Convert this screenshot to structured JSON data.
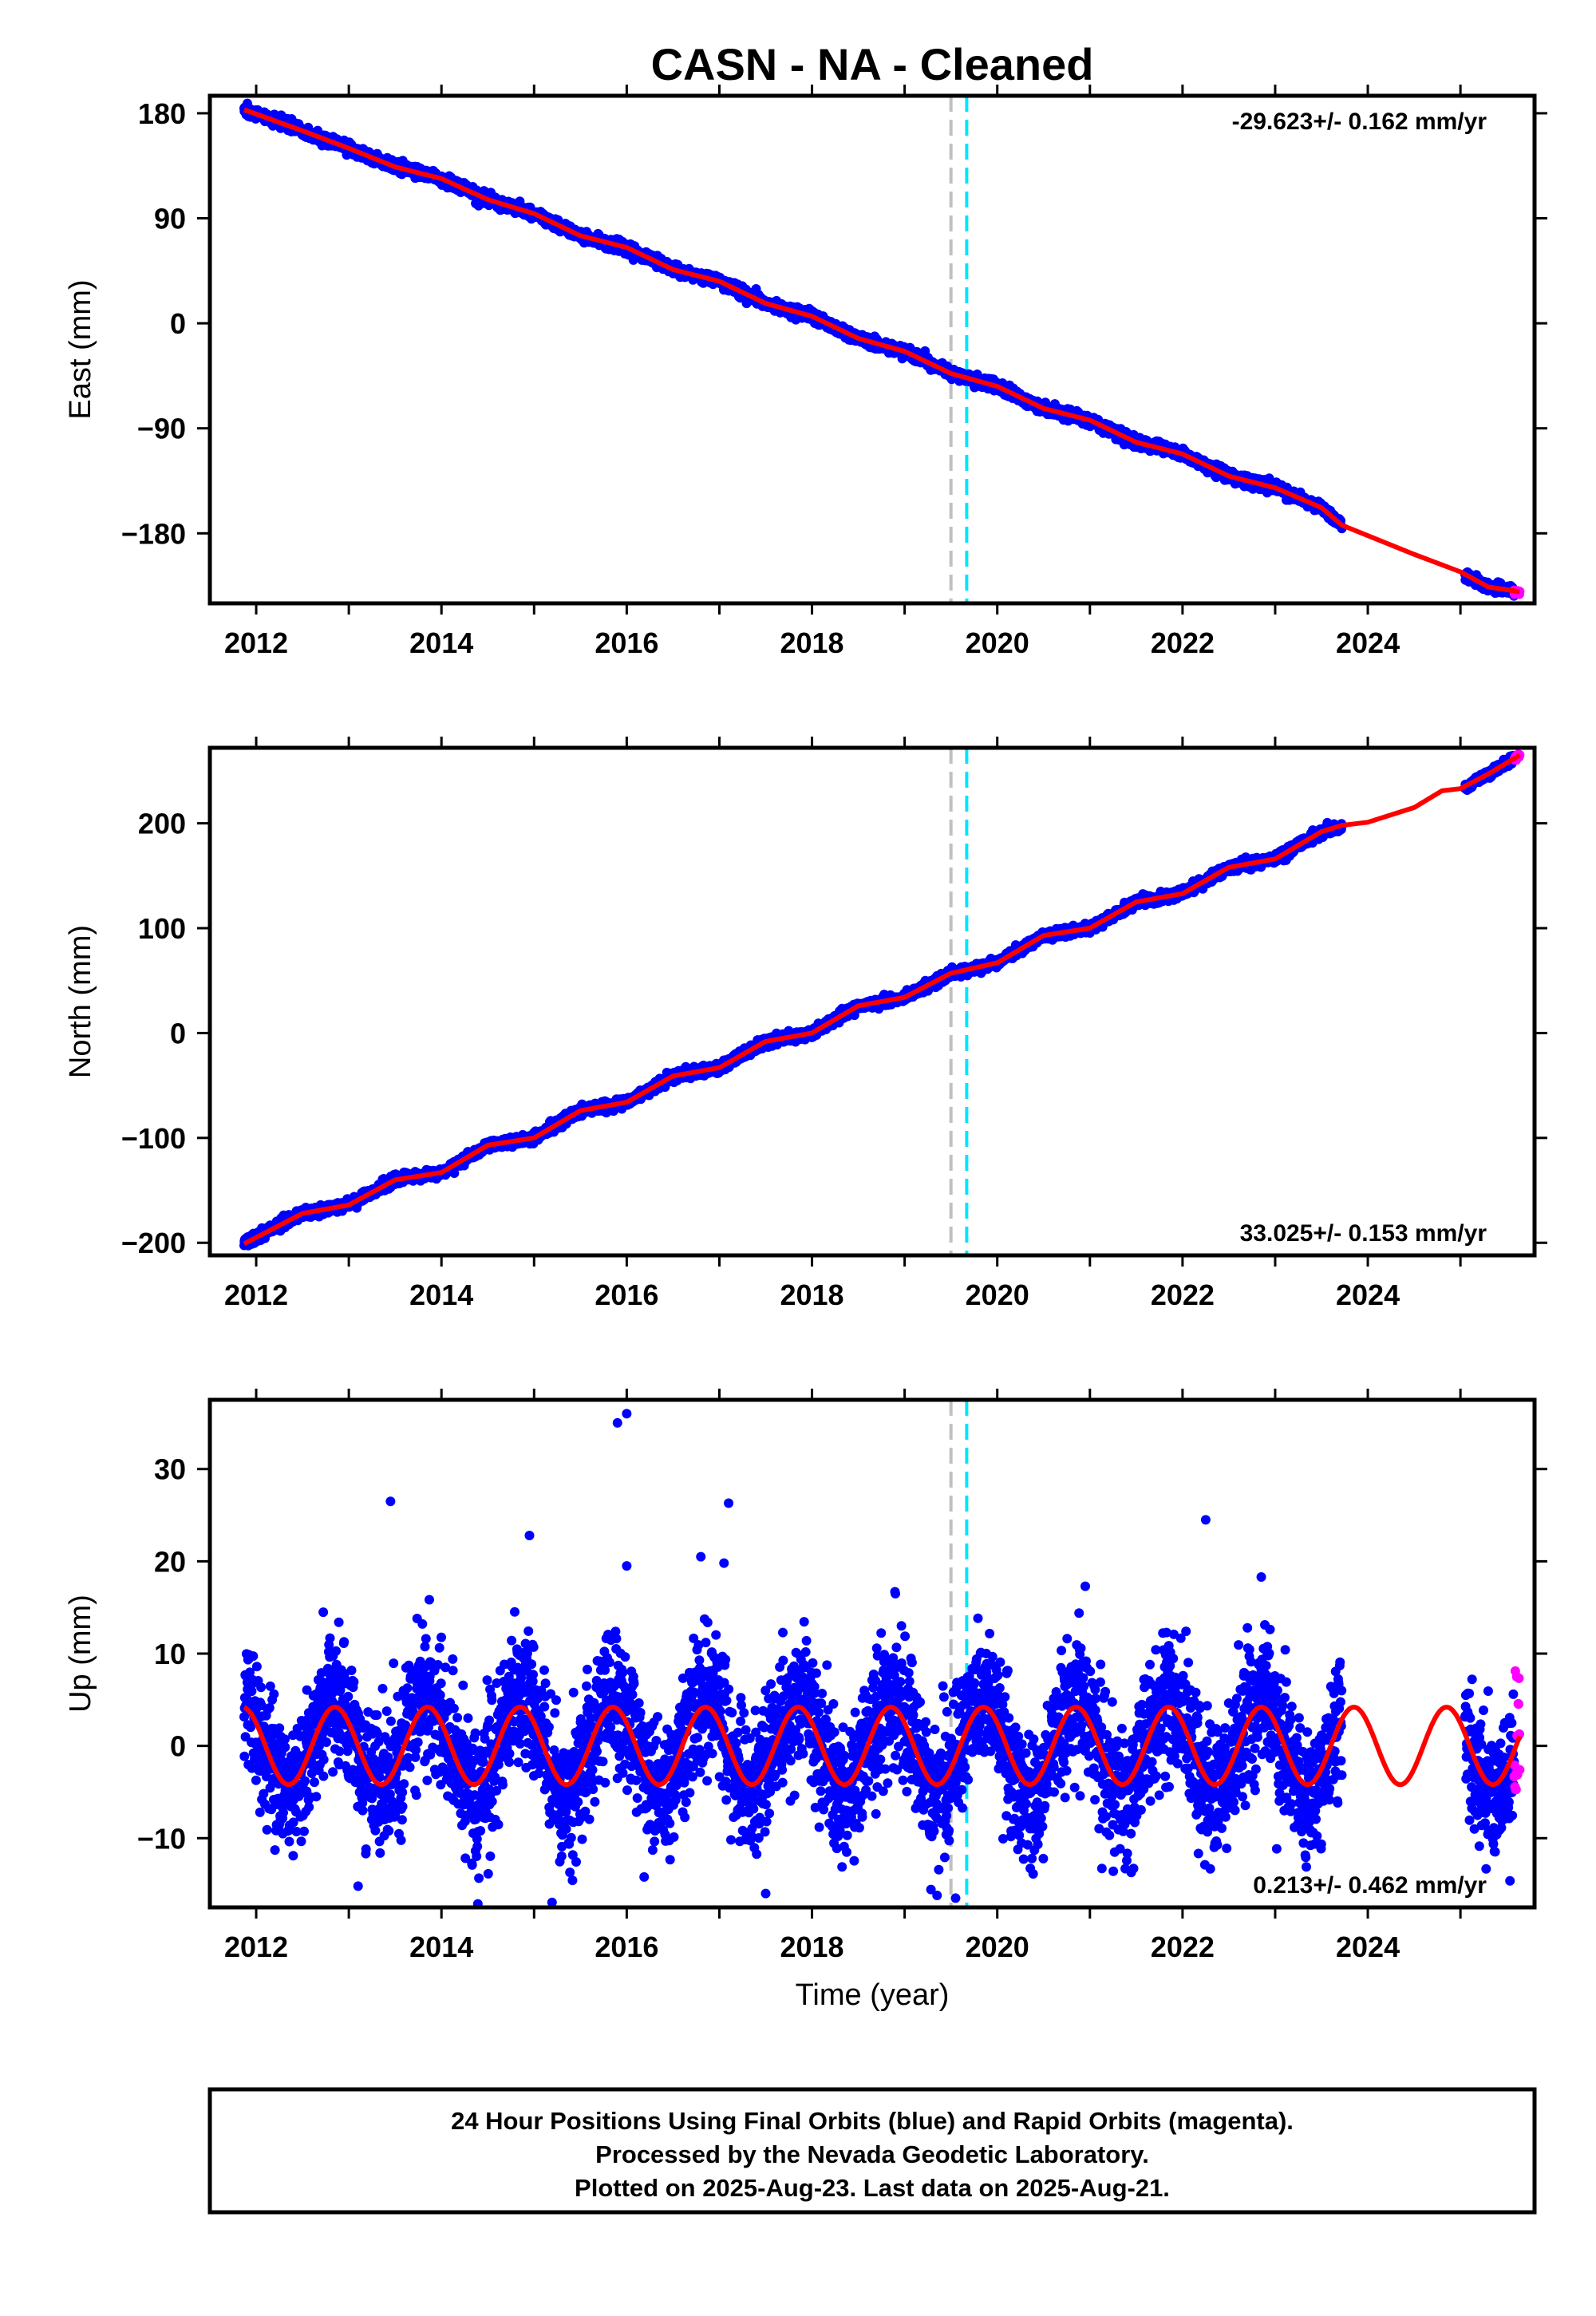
{
  "title": "CASN  - NA - Cleaned",
  "colors": {
    "final_points": "#0000ff",
    "rapid_points": "#ff00ff",
    "model_line": "#ff0000",
    "gray_marker": "#c0c0c0",
    "cyan_marker": "#00e5ff"
  },
  "chart_data": [
    {
      "type": "scatter",
      "panel": "east",
      "ylabel": "East (mm)",
      "xlabel": "",
      "xlim": [
        2011.5,
        2025.8
      ],
      "ylim": [
        -240,
        195
      ],
      "yticks": [
        "180",
        "90",
        "0",
        "−90",
        "−180"
      ],
      "ytick_values": [
        180,
        90,
        0,
        -90,
        -180
      ],
      "xticks": [
        "2012",
        "2014",
        "2016",
        "2018",
        "2020",
        "2022",
        "2024"
      ],
      "xtick_values": [
        2012,
        2014,
        2016,
        2018,
        2020,
        2022,
        2024
      ],
      "rate_text": "-29.623+/- 0.162 mm/yr",
      "rate_value": -29.623,
      "rate_sigma": 0.162,
      "rate_position": "top-right",
      "vertical_markers": [
        2019.5,
        2019.67
      ],
      "final_data_ranges": [
        [
          2011.87,
          2023.72
        ],
        [
          2025.05,
          2025.58
        ]
      ],
      "rapid_data_range": [
        2025.58,
        2025.64
      ],
      "model_points": [
        [
          2011.87,
          183
        ],
        [
          2012.5,
          165
        ],
        [
          2013.0,
          150
        ],
        [
          2013.5,
          134
        ],
        [
          2014.0,
          124
        ],
        [
          2014.5,
          106
        ],
        [
          2015.0,
          94
        ],
        [
          2015.5,
          75
        ],
        [
          2016.0,
          65
        ],
        [
          2016.5,
          46
        ],
        [
          2017.0,
          36
        ],
        [
          2017.5,
          17
        ],
        [
          2018.0,
          6
        ],
        [
          2018.5,
          -13
        ],
        [
          2019.0,
          -24
        ],
        [
          2019.5,
          -43
        ],
        [
          2020.0,
          -54
        ],
        [
          2020.5,
          -73
        ],
        [
          2021.0,
          -83
        ],
        [
          2021.5,
          -102
        ],
        [
          2022.0,
          -112
        ],
        [
          2022.5,
          -131
        ],
        [
          2023.0,
          -141
        ],
        [
          2023.5,
          -158
        ],
        [
          2023.72,
          -173
        ],
        [
          2024.5,
          -198
        ],
        [
          2025.0,
          -213
        ],
        [
          2025.3,
          -226
        ],
        [
          2025.64,
          -230
        ]
      ]
    },
    {
      "type": "scatter",
      "panel": "north",
      "ylabel": "North (mm)",
      "xlabel": "",
      "xlim": [
        2011.5,
        2025.8
      ],
      "ylim": [
        -212,
        272
      ],
      "yticks": [
        "200",
        "100",
        "0",
        "−100",
        "−200"
      ],
      "ytick_values": [
        200,
        100,
        0,
        -100,
        -200
      ],
      "xticks": [
        "2012",
        "2014",
        "2016",
        "2018",
        "2020",
        "2022",
        "2024"
      ],
      "xtick_values": [
        2012,
        2014,
        2016,
        2018,
        2020,
        2022,
        2024
      ],
      "rate_text": "33.025+/- 0.153 mm/yr",
      "rate_value": 33.025,
      "rate_sigma": 0.153,
      "rate_position": "bottom-right",
      "vertical_markers": [
        2019.5,
        2019.67
      ],
      "final_data_ranges": [
        [
          2011.87,
          2023.72
        ],
        [
          2025.05,
          2025.58
        ]
      ],
      "rapid_data_range": [
        2025.58,
        2025.64
      ],
      "model_points": [
        [
          2011.87,
          -201
        ],
        [
          2012.5,
          -172
        ],
        [
          2013.0,
          -164
        ],
        [
          2013.5,
          -140
        ],
        [
          2014.0,
          -133
        ],
        [
          2014.5,
          -107
        ],
        [
          2015.0,
          -100
        ],
        [
          2015.5,
          -74
        ],
        [
          2016.0,
          -66
        ],
        [
          2016.5,
          -41
        ],
        [
          2017.0,
          -33
        ],
        [
          2017.5,
          -8
        ],
        [
          2018.0,
          0
        ],
        [
          2018.5,
          26
        ],
        [
          2019.0,
          34
        ],
        [
          2019.5,
          57
        ],
        [
          2020.0,
          67
        ],
        [
          2020.5,
          93
        ],
        [
          2021.0,
          100
        ],
        [
          2021.5,
          125
        ],
        [
          2022.0,
          133
        ],
        [
          2022.5,
          158
        ],
        [
          2023.0,
          166
        ],
        [
          2023.5,
          192
        ],
        [
          2023.72,
          198
        ],
        [
          2024.0,
          201
        ],
        [
          2024.5,
          215
        ],
        [
          2024.8,
          231
        ],
        [
          2025.0,
          233
        ],
        [
          2025.3,
          247
        ],
        [
          2025.64,
          265
        ]
      ]
    },
    {
      "type": "scatter",
      "panel": "up",
      "ylabel": "Up (mm)",
      "xlabel": "Time (year)",
      "xlim": [
        2011.5,
        2025.8
      ],
      "ylim": [
        -17.5,
        37.5
      ],
      "yticks": [
        "30",
        "20",
        "10",
        "0",
        "−10"
      ],
      "ytick_values": [
        30,
        20,
        10,
        0,
        -10
      ],
      "xticks": [
        "2012",
        "2014",
        "2016",
        "2018",
        "2020",
        "2022",
        "2024"
      ],
      "xtick_values": [
        2012,
        2014,
        2016,
        2018,
        2020,
        2022,
        2024
      ],
      "rate_text": "0.213+/- 0.462 mm/yr",
      "rate_value": 0.213,
      "rate_sigma": 0.462,
      "rate_position": "bottom-right",
      "vertical_markers": [
        2019.5,
        2019.67
      ],
      "final_data_ranges": [
        [
          2011.87,
          2023.72
        ],
        [
          2025.05,
          2025.58
        ]
      ],
      "rapid_data_range": [
        2025.58,
        2025.64
      ],
      "seasonal_amplitude": 4.2,
      "seasonal_peak_phase": 0.85,
      "outliers": [
        [
          2015.9,
          35
        ],
        [
          2016.0,
          36
        ],
        [
          2013.45,
          26.5
        ],
        [
          2017.1,
          26.3
        ],
        [
          2022.25,
          24.5
        ],
        [
          2014.95,
          22.8
        ],
        [
          2016.8,
          20.5
        ],
        [
          2017.05,
          19.8
        ],
        [
          2016.0,
          19.5
        ],
        [
          2020.95,
          17.3
        ],
        [
          2022.85,
          18.3
        ],
        [
          2018.9,
          16.5
        ],
        [
          2019.55,
          -16.5
        ],
        [
          2019.35,
          -16.2
        ],
        [
          2017.5,
          -16
        ],
        [
          2013.1,
          -15.2
        ]
      ]
    }
  ],
  "footer": {
    "line1": "24 Hour Positions Using Final Orbits (blue) and Rapid Orbits (magenta).",
    "line2": "Processed by the Nevada Geodetic Laboratory.",
    "line3": "Plotted on 2025-Aug-23. Last data on 2025-Aug-21."
  }
}
